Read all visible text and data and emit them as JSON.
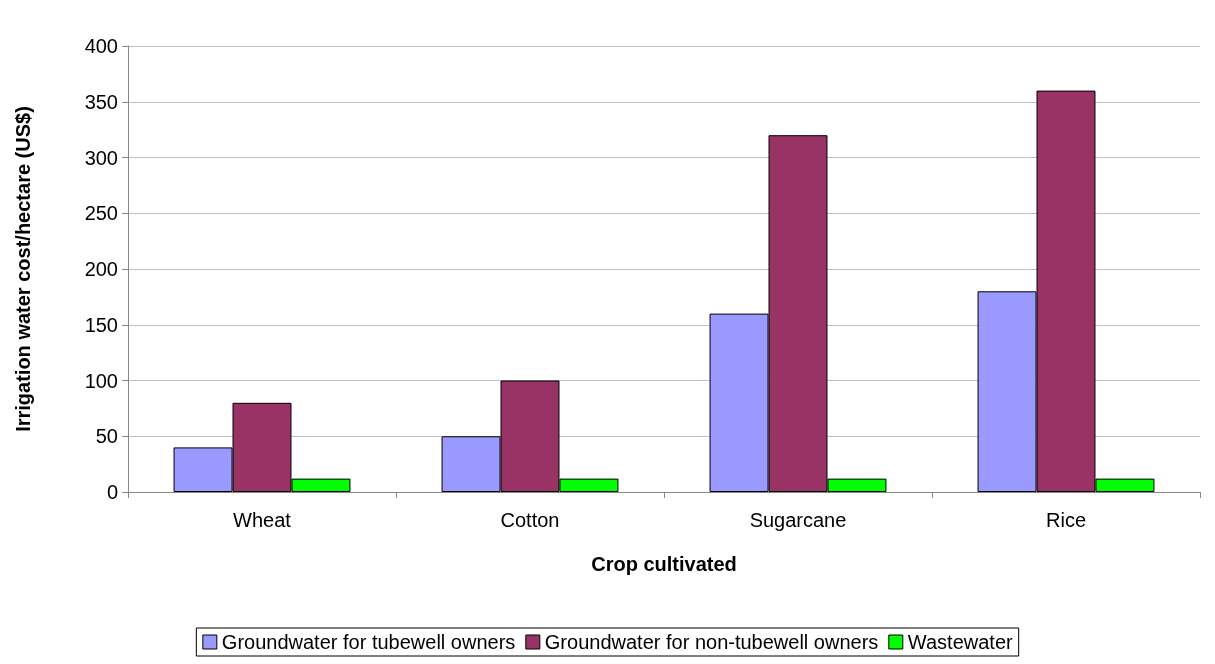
{
  "chart_data": {
    "type": "bar",
    "xlabel": "Crop cultivated",
    "ylabel": "Irrigation water cost/hectare (US$)",
    "categories": [
      "Wheat",
      "Cotton",
      "Sugarcane",
      "Rice"
    ],
    "series": [
      {
        "name": "Groundwater for tubewell owners",
        "color": "#9999ff",
        "values": [
          40,
          50,
          160,
          180
        ]
      },
      {
        "name": "Groundwater for non-tubewell owners",
        "color": "#993366",
        "values": [
          80,
          100,
          320,
          360
        ]
      },
      {
        "name": "Wastewater",
        "color": "#00ff00",
        "values": [
          12,
          12,
          12,
          12
        ]
      }
    ],
    "ylim": [
      0,
      400
    ],
    "yticks": [
      0,
      50,
      100,
      150,
      200,
      250,
      300,
      350,
      400
    ],
    "grid": "y",
    "legend": "bottom"
  }
}
